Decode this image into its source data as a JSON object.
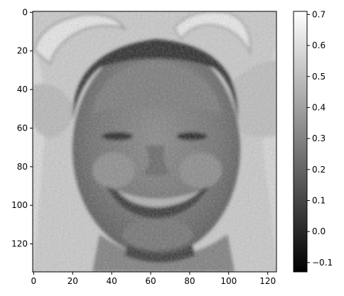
{
  "chart_data": {
    "type": "heatmap",
    "colormap": "gray",
    "x_axis": {
      "range": [
        -0.5,
        124.5
      ],
      "ticks": [
        0,
        20,
        40,
        60,
        80,
        100,
        120
      ]
    },
    "y_axis": {
      "range": [
        -0.5,
        134.5
      ],
      "inverted": true,
      "ticks": [
        0,
        20,
        40,
        60,
        80,
        100,
        120
      ]
    },
    "colorbar": {
      "range": [
        -0.13,
        0.71
      ],
      "ticks": [
        -0.1,
        0.0,
        0.1,
        0.2,
        0.3,
        0.4,
        0.5,
        0.6,
        0.7
      ],
      "tick_labels": [
        "−0.1",
        "0.0",
        "0.1",
        "0.2",
        "0.3",
        "0.4",
        "0.5",
        "0.6",
        "0.7"
      ]
    },
    "grid": false,
    "image_description_values": {
      "background_level": 0.55,
      "face_level": 0.38,
      "hair_band_level": 0.08,
      "eye_level": 0.05,
      "mouth_level": 0.18,
      "teeth_level": 0.5,
      "horn_level": 0.6
    }
  }
}
